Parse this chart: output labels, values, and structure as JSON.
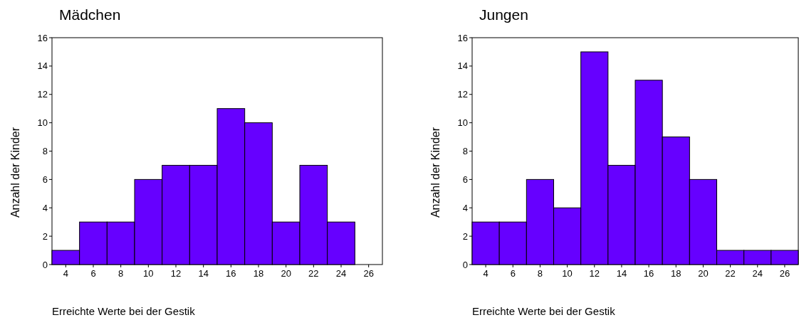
{
  "chart_data": [
    {
      "type": "histogram",
      "title": "Mädchen",
      "xlabel": "Erreichte Werte bei der Gestik",
      "ylabel": "Anzahl der Kinder",
      "bins": [
        3,
        5,
        7,
        9,
        11,
        13,
        15,
        17,
        19,
        21,
        23,
        25
      ],
      "values": [
        1,
        3,
        3,
        6,
        7,
        7,
        11,
        10,
        3,
        7,
        3
      ],
      "color": "#6600ff",
      "xlim": [
        3,
        27
      ],
      "xticks": [
        4,
        6,
        8,
        10,
        12,
        14,
        16,
        18,
        20,
        22,
        24,
        26
      ],
      "ylim": [
        0,
        16
      ],
      "yticks": [
        0,
        2,
        4,
        6,
        8,
        10,
        12,
        14,
        16
      ]
    },
    {
      "type": "histogram",
      "title": "Jungen",
      "xlabel": "Erreichte Werte bei der Gestik",
      "ylabel": "Anzahl der Kinder",
      "bins": [
        3,
        5,
        7,
        9,
        11,
        13,
        15,
        17,
        19,
        21,
        23,
        25,
        27
      ],
      "values": [
        3,
        3,
        6,
        4,
        15,
        7,
        13,
        9,
        6,
        1,
        1,
        1
      ],
      "color": "#6600ff",
      "xlim": [
        3,
        27
      ],
      "xticks": [
        4,
        6,
        8,
        10,
        12,
        14,
        16,
        18,
        20,
        22,
        24,
        26
      ],
      "ylim": [
        0,
        16
      ],
      "yticks": [
        0,
        2,
        4,
        6,
        8,
        10,
        12,
        14,
        16
      ]
    }
  ]
}
